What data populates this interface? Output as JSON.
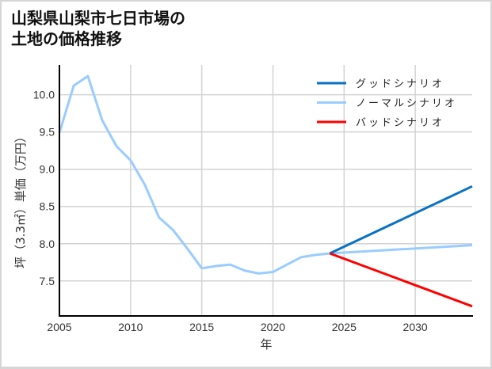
{
  "title": "山梨県山梨市七日市場の\n土地の価格推移",
  "colors": {
    "good": "#0a72c4",
    "normal": "#99ccff",
    "bad": "#ff0000",
    "grid": "#d3d3d3",
    "axis": "#000000"
  },
  "chart_data": {
    "type": "line",
    "title": "山梨県山梨市七日市場の土地の価格推移",
    "xlabel": "年",
    "ylabel": "坪（3.3㎡）単価（万円）",
    "xlim": [
      2005,
      2034
    ],
    "ylim": [
      7.03,
      10.4
    ],
    "xticks": [
      2005,
      2010,
      2015,
      2020,
      2025,
      2030
    ],
    "yticks": [
      7.5,
      8.0,
      8.5,
      9.0,
      9.5,
      10.0
    ],
    "xtick_labels": [
      "2005",
      "2010",
      "2015",
      "2020",
      "2025",
      "2030"
    ],
    "ytick_labels": [
      "7.5",
      "8.0",
      "8.5",
      "9.0",
      "9.5",
      "10.0"
    ],
    "grid": true,
    "legend_position": "upper right",
    "series": [
      {
        "name": "グッドシナリオ",
        "color": "#0a72c4",
        "x": [
          2024,
          2034
        ],
        "values": [
          7.87,
          8.77
        ]
      },
      {
        "name": "ノーマルシナリオ",
        "color": "#99ccff",
        "x": [
          2005,
          2006,
          2007,
          2008,
          2009,
          2010,
          2011,
          2012,
          2013,
          2014,
          2015,
          2016,
          2017,
          2018,
          2019,
          2020,
          2021,
          2022,
          2023,
          2024,
          2034
        ],
        "values": [
          9.49,
          10.12,
          10.25,
          9.66,
          9.31,
          9.12,
          8.79,
          8.35,
          8.18,
          7.93,
          7.67,
          7.7,
          7.72,
          7.64,
          7.6,
          7.62,
          7.72,
          7.82,
          7.85,
          7.87,
          7.98
        ]
      },
      {
        "name": "バッドシナリオ",
        "color": "#ff0000",
        "x": [
          2024,
          2034
        ],
        "values": [
          7.87,
          7.16
        ]
      }
    ]
  },
  "legend": [
    {
      "label": "グッドシナリオ",
      "color": "#0a72c4"
    },
    {
      "label": "ノーマルシナリオ",
      "color": "#99ccff"
    },
    {
      "label": "バッドシナリオ",
      "color": "#ff0000"
    }
  ]
}
